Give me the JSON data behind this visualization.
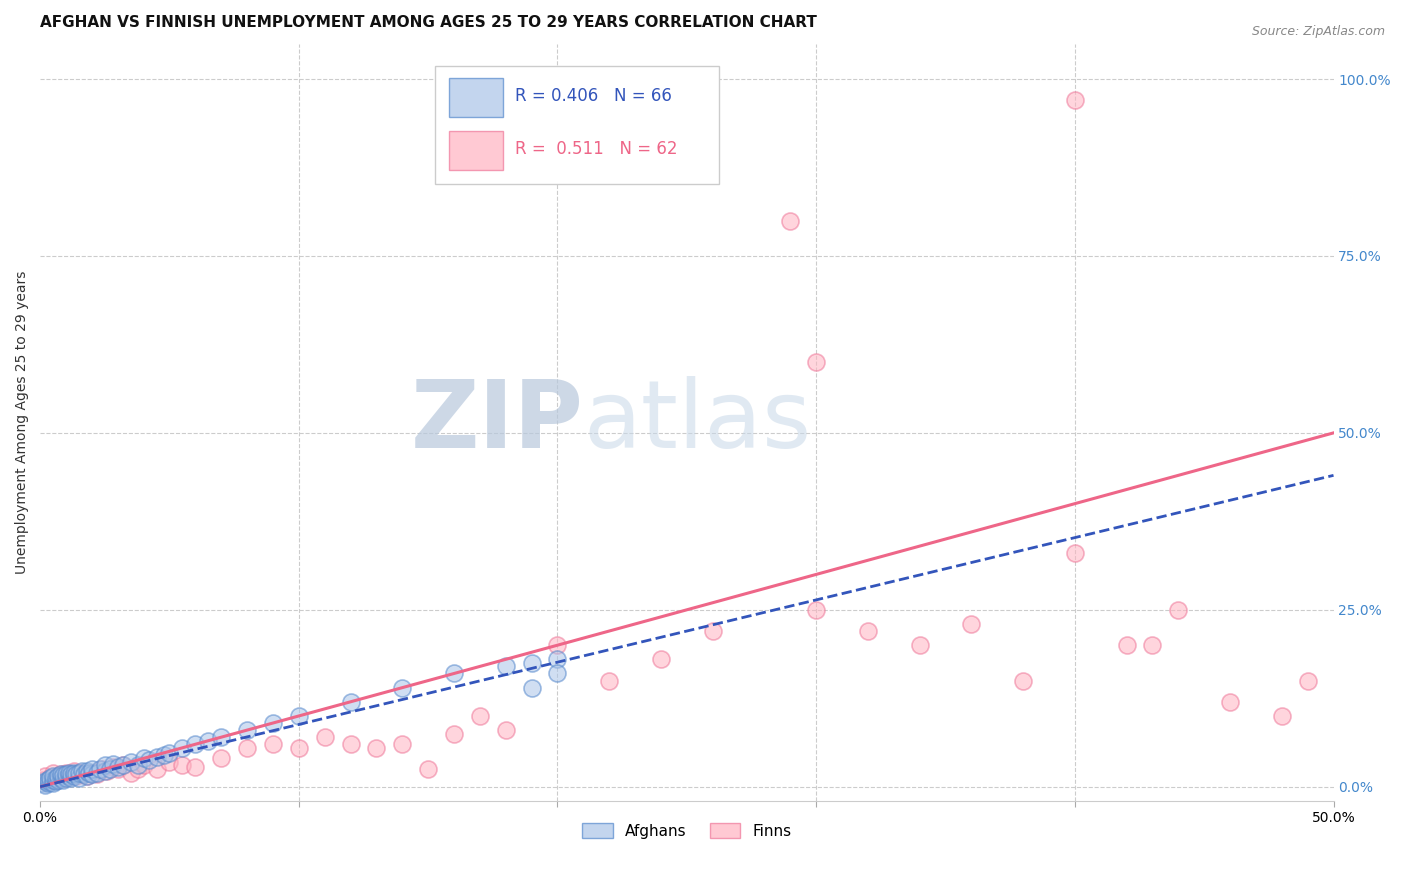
{
  "title": "AFGHAN VS FINNISH UNEMPLOYMENT AMONG AGES 25 TO 29 YEARS CORRELATION CHART",
  "source": "Source: ZipAtlas.com",
  "ylabel": "Unemployment Among Ages 25 to 29 years",
  "xlim": [
    0.0,
    0.5
  ],
  "ylim": [
    -0.02,
    1.05
  ],
  "yticks_right": [
    0.0,
    0.25,
    0.5,
    0.75,
    1.0
  ],
  "yticklabels_right": [
    "0.0%",
    "25.0%",
    "50.0%",
    "75.0%",
    "100.0%"
  ],
  "grid_color": "#cccccc",
  "background_color": "#ffffff",
  "afghan_face_color": "#aac4e8",
  "afghan_edge_color": "#5588cc",
  "finn_face_color": "#ffb3c1",
  "finn_edge_color": "#ee7799",
  "afghan_line_color": "#3355bb",
  "finn_line_color": "#ee6688",
  "legend_R_afghan": "R = 0.406",
  "legend_N_afghan": "N = 66",
  "legend_R_finn": "R =  0.511",
  "legend_N_finn": "N = 62",
  "watermark_zip": "ZIP",
  "watermark_atlas": "atlas",
  "title_fontsize": 11,
  "axis_label_fontsize": 10,
  "tick_fontsize": 10,
  "legend_fontsize": 12,
  "afghan_x": [
    0.001,
    0.002,
    0.002,
    0.003,
    0.003,
    0.004,
    0.004,
    0.005,
    0.005,
    0.005,
    0.006,
    0.006,
    0.007,
    0.007,
    0.008,
    0.008,
    0.009,
    0.009,
    0.01,
    0.01,
    0.011,
    0.011,
    0.012,
    0.012,
    0.013,
    0.013,
    0.014,
    0.015,
    0.015,
    0.016,
    0.017,
    0.018,
    0.018,
    0.019,
    0.02,
    0.02,
    0.022,
    0.023,
    0.025,
    0.025,
    0.027,
    0.028,
    0.03,
    0.032,
    0.035,
    0.038,
    0.04,
    0.042,
    0.045,
    0.048,
    0.05,
    0.055,
    0.06,
    0.065,
    0.07,
    0.08,
    0.09,
    0.1,
    0.12,
    0.14,
    0.16,
    0.18,
    0.19,
    0.2,
    0.2,
    0.19
  ],
  "afghan_y": [
    0.005,
    0.003,
    0.008,
    0.005,
    0.01,
    0.007,
    0.012,
    0.005,
    0.01,
    0.015,
    0.008,
    0.013,
    0.01,
    0.015,
    0.012,
    0.018,
    0.01,
    0.016,
    0.012,
    0.018,
    0.015,
    0.02,
    0.013,
    0.018,
    0.015,
    0.02,
    0.018,
    0.012,
    0.02,
    0.022,
    0.018,
    0.015,
    0.022,
    0.02,
    0.018,
    0.025,
    0.02,
    0.025,
    0.022,
    0.03,
    0.025,
    0.032,
    0.028,
    0.03,
    0.035,
    0.03,
    0.04,
    0.038,
    0.042,
    0.045,
    0.048,
    0.055,
    0.06,
    0.065,
    0.07,
    0.08,
    0.09,
    0.1,
    0.12,
    0.14,
    0.16,
    0.17,
    0.175,
    0.18,
    0.16,
    0.14
  ],
  "finn_x": [
    0.001,
    0.002,
    0.003,
    0.004,
    0.005,
    0.006,
    0.007,
    0.008,
    0.009,
    0.01,
    0.011,
    0.012,
    0.013,
    0.014,
    0.015,
    0.016,
    0.018,
    0.02,
    0.022,
    0.024,
    0.026,
    0.028,
    0.03,
    0.032,
    0.035,
    0.038,
    0.04,
    0.045,
    0.05,
    0.055,
    0.06,
    0.07,
    0.08,
    0.09,
    0.1,
    0.11,
    0.12,
    0.13,
    0.14,
    0.15,
    0.16,
    0.17,
    0.18,
    0.2,
    0.22,
    0.24,
    0.26,
    0.29,
    0.3,
    0.32,
    0.34,
    0.36,
    0.38,
    0.4,
    0.42,
    0.44,
    0.46,
    0.48,
    0.49,
    0.3,
    0.4,
    0.43
  ],
  "finn_y": [
    0.01,
    0.015,
    0.008,
    0.012,
    0.02,
    0.01,
    0.015,
    0.018,
    0.012,
    0.02,
    0.015,
    0.018,
    0.022,
    0.015,
    0.02,
    0.018,
    0.015,
    0.02,
    0.018,
    0.025,
    0.022,
    0.028,
    0.025,
    0.03,
    0.02,
    0.025,
    0.03,
    0.025,
    0.035,
    0.03,
    0.028,
    0.04,
    0.055,
    0.06,
    0.055,
    0.07,
    0.06,
    0.055,
    0.06,
    0.025,
    0.075,
    0.1,
    0.08,
    0.2,
    0.15,
    0.18,
    0.22,
    0.8,
    0.25,
    0.22,
    0.2,
    0.23,
    0.15,
    0.33,
    0.2,
    0.25,
    0.12,
    0.1,
    0.15,
    0.6,
    0.97,
    0.2
  ],
  "finn_line_x": [
    0.0,
    0.5
  ],
  "finn_line_y": [
    0.0,
    0.5
  ],
  "afghan_line_x": [
    0.0,
    0.5
  ],
  "afghan_line_y": [
    0.0,
    0.44
  ]
}
